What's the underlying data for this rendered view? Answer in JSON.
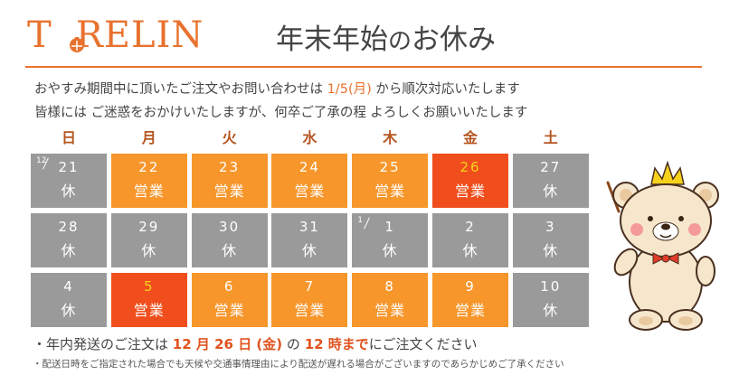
{
  "logo": {
    "text": "T RELIN",
    "part1": "T",
    "part2": "RELIN"
  },
  "title": {
    "part1": "年末年始",
    "part2": "の",
    "part3": "お休み"
  },
  "message": {
    "line1_a": "おやすみ期間中に頂いたご注文やお問い合わせは ",
    "line1_date": "1/5(月)",
    "line1_b": " から順次対応いたします",
    "line2": "皆様には ご迷惑をおかけいたしますが、何卒ご了承の程 よろしくお願いいたします"
  },
  "weekdays": [
    "日",
    "月",
    "火",
    "水",
    "木",
    "金",
    "土"
  ],
  "colors": {
    "accent": "#e8722e",
    "business_day": "#f7962b",
    "highlight_day": "#f04e1c",
    "closed_day": "#9a9a9a",
    "weekday_label": "#b5551f"
  },
  "calendar": [
    [
      {
        "month": "12",
        "day": "21",
        "status": "休",
        "type": "closed"
      },
      {
        "day": "22",
        "status": "営業",
        "type": "open"
      },
      {
        "day": "23",
        "status": "営業",
        "type": "open"
      },
      {
        "day": "24",
        "status": "営業",
        "type": "open"
      },
      {
        "day": "25",
        "status": "営業",
        "type": "open"
      },
      {
        "day": "26",
        "status": "営業",
        "type": "highlight"
      },
      {
        "day": "27",
        "status": "休",
        "type": "closed"
      }
    ],
    [
      {
        "day": "28",
        "status": "休",
        "type": "closed"
      },
      {
        "day": "29",
        "status": "休",
        "type": "closed"
      },
      {
        "day": "30",
        "status": "休",
        "type": "closed"
      },
      {
        "day": "31",
        "status": "休",
        "type": "closed"
      },
      {
        "month": "1",
        "day": "1",
        "status": "休",
        "type": "closed"
      },
      {
        "day": "2",
        "status": "休",
        "type": "closed"
      },
      {
        "day": "3",
        "status": "休",
        "type": "closed"
      }
    ],
    [
      {
        "day": "4",
        "status": "休",
        "type": "closed"
      },
      {
        "day": "5",
        "status": "営業",
        "type": "highlight"
      },
      {
        "day": "6",
        "status": "営業",
        "type": "open"
      },
      {
        "day": "7",
        "status": "営業",
        "type": "open"
      },
      {
        "day": "8",
        "status": "営業",
        "type": "open"
      },
      {
        "day": "9",
        "status": "営業",
        "type": "open"
      },
      {
        "day": "10",
        "status": "休",
        "type": "closed"
      }
    ]
  ],
  "notes": {
    "deadline_a": "・年内発送のご注文は ",
    "deadline_date": "12 月 26 日 (金)",
    "deadline_b": " の ",
    "deadline_time": "12 時まで",
    "deadline_c": "にご注文ください",
    "disclaimer": "・配送日時をご指定された場合でも天候や交通事情理由により配送が遅れる場合がございますのであらかじめご了承ください"
  },
  "icons": {
    "logo_mark": "bell-icon",
    "mascot": "bear-mascot"
  }
}
